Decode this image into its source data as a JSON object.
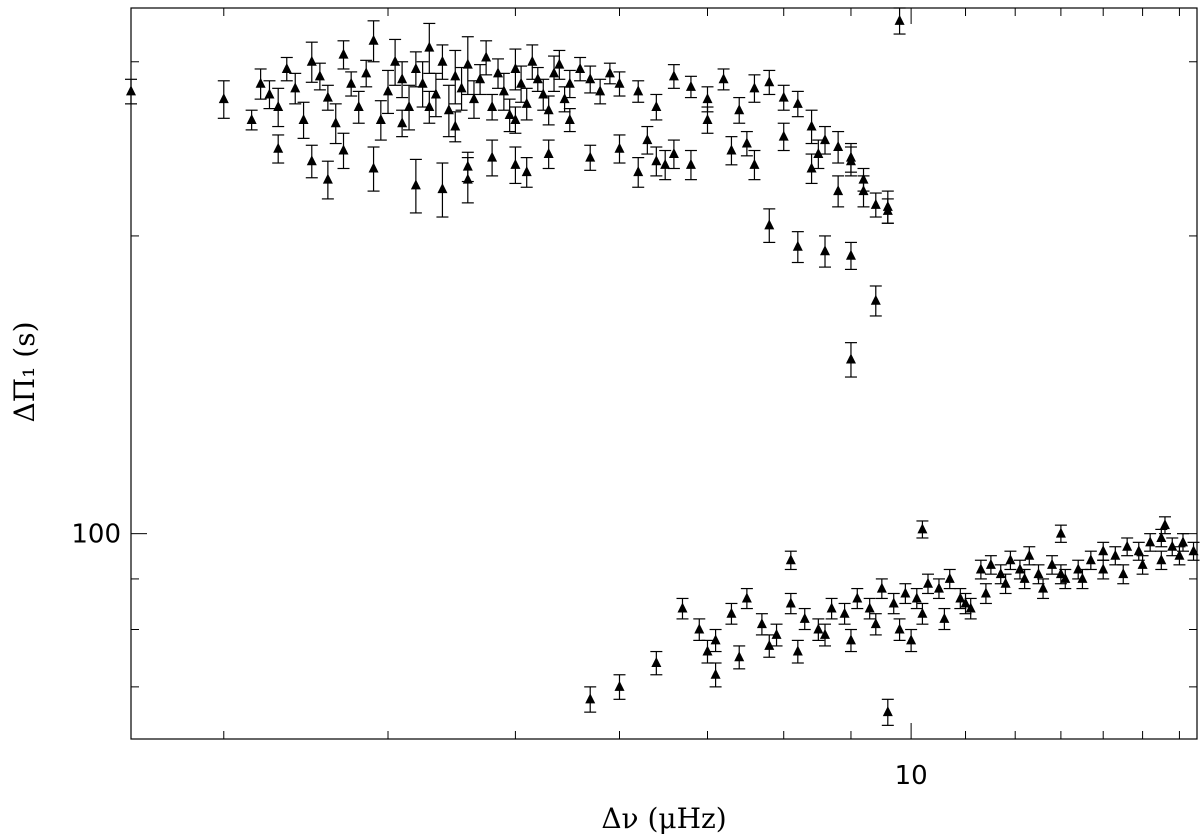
{
  "chart_data": {
    "type": "scatter",
    "title": "",
    "xlabel": "Δν (μHz)",
    "ylabel": "ΔΠ₁ (s)",
    "x_scale": "log",
    "y_scale": "log",
    "xlim": [
      2.55,
      16.5
    ],
    "ylim": [
      62,
      340
    ],
    "x_tick_labels": [
      {
        "value": 10,
        "label": "10"
      }
    ],
    "y_tick_labels": [
      {
        "value": 100,
        "label": "100"
      }
    ],
    "grid": false,
    "marker": "filled triangle with vertical error bars",
    "series": [
      {
        "points": [
          [
            2.55,
            280,
            8
          ],
          [
            3.0,
            275,
            12
          ],
          [
            3.15,
            262,
            6
          ],
          [
            3.2,
            285,
            10
          ],
          [
            3.25,
            278,
            9
          ],
          [
            3.3,
            270,
            12
          ],
          [
            3.35,
            295,
            8
          ],
          [
            3.4,
            282,
            10
          ],
          [
            3.45,
            262,
            11
          ],
          [
            3.5,
            300,
            14
          ],
          [
            3.55,
            290,
            9
          ],
          [
            3.6,
            276,
            8
          ],
          [
            3.65,
            260,
            12
          ],
          [
            3.7,
            305,
            10
          ],
          [
            3.75,
            285,
            8
          ],
          [
            3.8,
            270,
            10
          ],
          [
            3.85,
            292,
            9
          ],
          [
            3.9,
            315,
            15
          ],
          [
            3.95,
            262,
            12
          ],
          [
            4.0,
            280,
            14
          ],
          [
            4.05,
            300,
            16
          ],
          [
            4.1,
            288,
            12
          ],
          [
            4.15,
            270,
            14
          ],
          [
            4.2,
            295,
            12
          ],
          [
            4.25,
            285,
            15
          ],
          [
            4.3,
            310,
            18
          ],
          [
            4.35,
            278,
            14
          ],
          [
            4.4,
            300,
            12
          ],
          [
            4.45,
            268,
            16
          ],
          [
            4.5,
            290,
            18
          ],
          [
            4.55,
            282,
            14
          ],
          [
            4.6,
            298,
            20
          ],
          [
            4.65,
            275,
            12
          ],
          [
            4.7,
            288,
            10
          ],
          [
            4.75,
            303,
            12
          ],
          [
            4.8,
            270,
            8
          ],
          [
            4.85,
            292,
            10
          ],
          [
            4.9,
            280,
            12
          ],
          [
            4.95,
            265,
            10
          ],
          [
            5.0,
            295,
            14
          ],
          [
            5.05,
            285,
            12
          ],
          [
            5.1,
            272,
            10
          ],
          [
            5.15,
            300,
            12
          ],
          [
            5.2,
            288,
            8
          ],
          [
            5.25,
            278,
            10
          ],
          [
            5.3,
            268,
            9
          ],
          [
            5.35,
            292,
            12
          ],
          [
            5.4,
            298,
            10
          ],
          [
            5.45,
            275,
            8
          ],
          [
            5.5,
            285,
            9
          ],
          [
            5.6,
            295,
            8
          ],
          [
            5.7,
            288,
            9
          ],
          [
            5.8,
            280,
            8
          ],
          [
            5.9,
            292,
            7
          ],
          [
            6.0,
            285,
            8
          ],
          [
            6.2,
            280,
            7
          ],
          [
            6.4,
            270,
            8
          ],
          [
            6.6,
            290,
            8
          ],
          [
            6.8,
            283,
            7
          ],
          [
            7.0,
            275,
            8
          ],
          [
            7.2,
            288,
            7
          ],
          [
            7.4,
            268,
            8
          ],
          [
            7.6,
            282,
            9
          ],
          [
            7.8,
            286,
            8
          ],
          [
            8.0,
            276,
            8
          ],
          [
            8.2,
            272,
            8
          ],
          [
            8.4,
            258,
            10
          ],
          [
            8.6,
            250,
            8
          ],
          [
            8.8,
            246,
            9
          ],
          [
            9.0,
            240,
            8
          ],
          [
            9.2,
            228,
            6
          ],
          [
            9.4,
            215,
            6
          ],
          [
            9.6,
            212,
            6
          ],
          [
            9.8,
            330,
            10
          ],
          [
            4.1,
            260,
            8
          ],
          [
            4.3,
            270,
            10
          ],
          [
            4.5,
            258,
            9
          ],
          [
            5.0,
            262,
            8
          ],
          [
            5.5,
            262,
            7
          ],
          [
            6.0,
            245,
            8
          ],
          [
            6.5,
            236,
            8
          ],
          [
            7.0,
            262,
            8
          ],
          [
            7.5,
            248,
            7
          ],
          [
            8.0,
            252,
            8
          ],
          [
            8.5,
            242,
            8
          ],
          [
            9.0,
            238,
            8
          ],
          [
            3.3,
            245,
            8
          ],
          [
            3.5,
            238,
            9
          ],
          [
            3.7,
            244,
            10
          ],
          [
            4.6,
            235,
            8
          ],
          [
            5.1,
            232,
            8
          ],
          [
            5.7,
            240,
            7
          ],
          [
            6.3,
            250,
            8
          ],
          [
            7.8,
            205,
            8
          ],
          [
            8.2,
            195,
            7
          ],
          [
            8.6,
            193,
            7
          ],
          [
            9.0,
            191,
            6
          ],
          [
            9.4,
            172,
            6
          ],
          [
            9.0,
            150,
            6
          ],
          [
            3.6,
            228,
            10
          ],
          [
            3.9,
            234,
            12
          ],
          [
            4.2,
            225,
            14
          ],
          [
            4.4,
            223,
            14
          ],
          [
            4.6,
            228,
            12
          ],
          [
            4.8,
            240,
            10
          ],
          [
            5.0,
            236,
            10
          ],
          [
            5.3,
            242,
            8
          ],
          [
            6.2,
            232,
            8
          ],
          [
            6.4,
            238,
            8
          ],
          [
            6.6,
            242,
            8
          ],
          [
            6.8,
            236,
            8
          ],
          [
            7.3,
            244,
            8
          ],
          [
            7.6,
            236,
            8
          ],
          [
            8.4,
            234,
            8
          ],
          [
            8.8,
            222,
            8
          ],
          [
            9.2,
            222,
            8
          ],
          [
            9.6,
            214,
            8
          ]
        ]
      },
      {
        "points": [
          [
            6.7,
            84,
            2
          ],
          [
            6.9,
            80,
            2
          ],
          [
            7.1,
            78,
            2
          ],
          [
            7.3,
            83,
            2
          ],
          [
            7.5,
            86,
            2
          ],
          [
            7.7,
            81,
            2
          ],
          [
            7.9,
            79,
            2
          ],
          [
            8.1,
            85,
            2
          ],
          [
            8.3,
            82,
            2
          ],
          [
            8.5,
            80,
            2
          ],
          [
            8.7,
            84,
            2
          ],
          [
            8.9,
            83,
            2
          ],
          [
            9.1,
            86,
            2
          ],
          [
            9.3,
            84,
            2
          ],
          [
            9.5,
            88,
            2
          ],
          [
            9.7,
            85,
            2
          ],
          [
            9.9,
            87,
            2
          ],
          [
            10.1,
            86,
            2
          ],
          [
            10.3,
            89,
            2
          ],
          [
            10.5,
            88,
            2
          ],
          [
            10.7,
            90,
            2
          ],
          [
            10.9,
            86,
            2
          ],
          [
            11.1,
            84,
            2
          ],
          [
            11.3,
            92,
            2
          ],
          [
            11.5,
            93,
            2
          ],
          [
            11.7,
            91,
            2
          ],
          [
            11.9,
            94,
            2
          ],
          [
            12.1,
            92,
            2
          ],
          [
            12.3,
            95,
            2
          ],
          [
            12.5,
            91,
            2
          ],
          [
            12.8,
            93,
            2
          ],
          [
            13.1,
            90,
            2
          ],
          [
            13.4,
            92,
            2
          ],
          [
            13.7,
            94,
            2
          ],
          [
            14.0,
            96,
            2
          ],
          [
            14.3,
            95,
            2
          ],
          [
            14.6,
            97,
            2
          ],
          [
            14.9,
            96,
            2
          ],
          [
            15.2,
            98,
            2
          ],
          [
            15.5,
            99,
            2
          ],
          [
            15.8,
            97,
            2
          ],
          [
            16.1,
            98,
            2
          ],
          [
            16.4,
            96,
            2
          ],
          [
            7.0,
            76,
            2
          ],
          [
            7.4,
            75,
            2
          ],
          [
            7.8,
            77,
            2
          ],
          [
            8.2,
            76,
            2
          ],
          [
            8.6,
            79,
            2
          ],
          [
            9.0,
            78,
            2
          ],
          [
            9.4,
            81,
            2
          ],
          [
            9.8,
            80,
            2
          ],
          [
            10.2,
            83,
            2
          ],
          [
            10.6,
            82,
            2
          ],
          [
            11.0,
            85,
            2
          ],
          [
            11.4,
            87,
            2
          ],
          [
            11.8,
            89,
            2
          ],
          [
            12.2,
            90,
            2
          ],
          [
            12.6,
            88,
            2
          ],
          [
            13.0,
            91,
            2
          ],
          [
            13.5,
            90,
            2
          ],
          [
            14.0,
            92,
            2
          ],
          [
            14.5,
            91,
            2
          ],
          [
            15.0,
            93,
            2
          ],
          [
            15.5,
            94,
            2
          ],
          [
            16.0,
            95,
            2
          ],
          [
            8.1,
            94,
            2
          ],
          [
            10.2,
            101,
            2
          ],
          [
            13.0,
            100,
            2
          ],
          [
            15.6,
            102,
            2
          ],
          [
            10.0,
            78,
            2
          ],
          [
            9.6,
            66,
            2
          ],
          [
            7.1,
            72,
            2
          ],
          [
            6.4,
            74,
            2
          ],
          [
            6.0,
            70,
            2
          ],
          [
            5.7,
            68,
            2
          ]
        ]
      }
    ]
  }
}
